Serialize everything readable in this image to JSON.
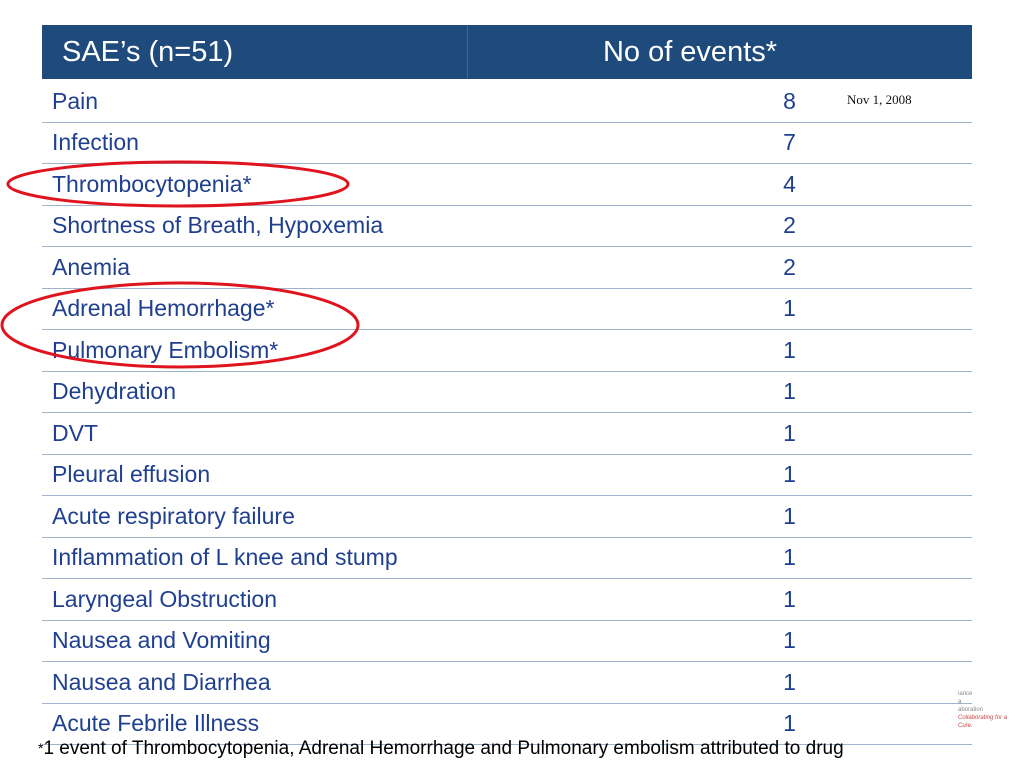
{
  "table": {
    "header": {
      "col1": "SAE’s (n=51)",
      "col2": "No of events*"
    },
    "rows": [
      {
        "label": "Pain",
        "count": "8"
      },
      {
        "label": "Infection",
        "count": "7"
      },
      {
        "label": "Thrombocytopenia*",
        "count": "4"
      },
      {
        "label": "Shortness of Breath, Hypoxemia",
        "count": "2"
      },
      {
        "label": "Anemia",
        "count": "2"
      },
      {
        "label": "Adrenal Hemorrhage*",
        "count": "1"
      },
      {
        "label": "Pulmonary Embolism*",
        "count": "1"
      },
      {
        "label": "Dehydration",
        "count": "1"
      },
      {
        "label": "DVT",
        "count": "1"
      },
      {
        "label": "Pleural effusion",
        "count": "1"
      },
      {
        "label": "Acute respiratory failure",
        "count": "1"
      },
      {
        "label": "Inflammation of L knee and stump",
        "count": "1"
      },
      {
        "label": "Laryngeal Obstruction",
        "count": "1"
      },
      {
        "label": "Nausea and Vomiting",
        "count": "1"
      },
      {
        "label": "Nausea and Diarrhea",
        "count": "1"
      },
      {
        "label": "Acute Febrile Illness",
        "count": "1"
      }
    ]
  },
  "date_note": "Nov 1, 2008",
  "footnote": {
    "star": "*",
    "text": "1 event of  Thrombocytopenia, Adrenal Hemorrhage and Pulmonary embolism attributed to drug"
  },
  "logo": {
    "line1": "iance",
    "line2": "a",
    "line3": "aboration",
    "tagline": "Collaborating for a Cure."
  },
  "colors": {
    "header_bg": "#1f4a7c",
    "text": "#1f3f8f",
    "highlight_circle": "#e0141e"
  }
}
